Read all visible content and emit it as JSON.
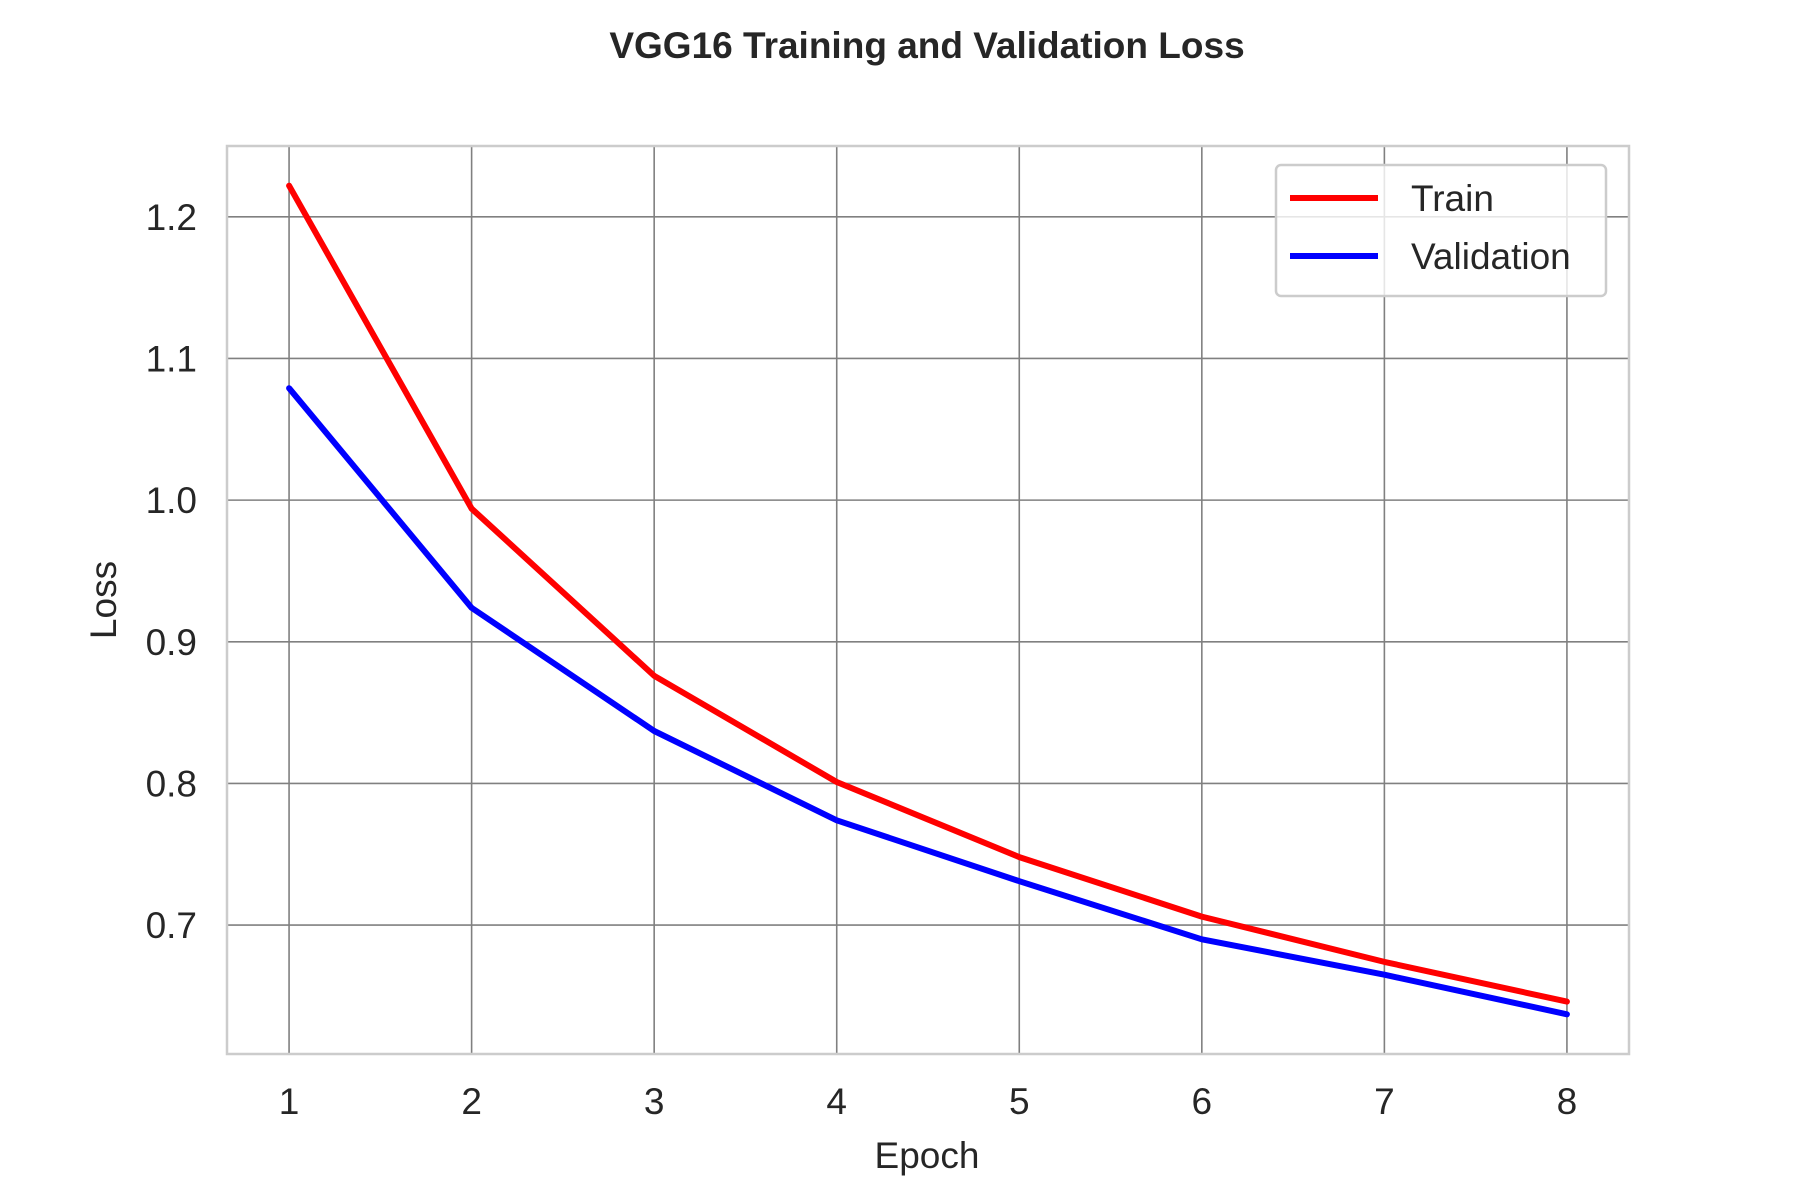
{
  "chart_data": {
    "type": "line",
    "title": "VGG16 Training and Validation Loss",
    "xlabel": "Epoch",
    "ylabel": "Loss",
    "x": [
      1,
      2,
      3,
      4,
      5,
      6,
      7,
      8
    ],
    "xticks": [
      "1",
      "2",
      "3",
      "4",
      "5",
      "6",
      "7",
      "8"
    ],
    "yticks": [
      "0.7",
      "0.8",
      "0.9",
      "1.0",
      "1.1",
      "1.2"
    ],
    "xlim": [
      0.66,
      8.34
    ],
    "ylim": [
      0.609,
      1.25
    ],
    "grid": true,
    "legend_position": "top-right",
    "series": [
      {
        "name": "Train",
        "color": "#ff0000",
        "values": [
          1.222,
          0.994,
          0.876,
          0.801,
          0.748,
          0.706,
          0.674,
          0.646
        ]
      },
      {
        "name": "Validation",
        "color": "#0000ff",
        "values": [
          1.079,
          0.924,
          0.837,
          0.774,
          0.731,
          0.69,
          0.665,
          0.637
        ]
      }
    ]
  }
}
